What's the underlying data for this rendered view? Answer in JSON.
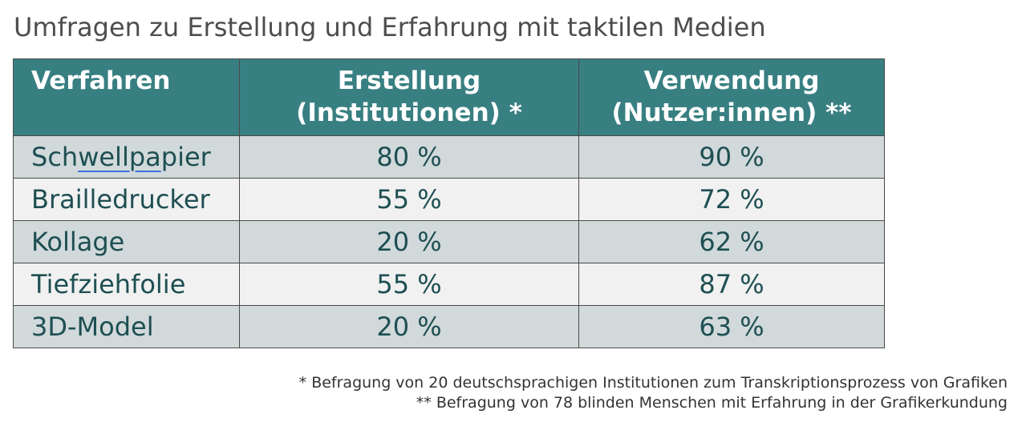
{
  "title": "Umfragen zu Erstellung und Erfahrung mit taktilen Medien",
  "table": {
    "headers": [
      [
        "Verfahren"
      ],
      [
        "Erstellung",
        "(Institutionen) *"
      ],
      [
        "Verwendung",
        "(Nutzer:innen) **"
      ]
    ],
    "rows": [
      {
        "method_pre": "Sch",
        "method_marked": "wellpa",
        "method_post": "pier",
        "creation": "80 %",
        "usage": "90 %"
      },
      {
        "method": "Brailledrucker",
        "creation": "55 %",
        "usage": "72 %"
      },
      {
        "method": "Kollage",
        "creation": "20 %",
        "usage": "62 %"
      },
      {
        "method": "Tiefziehfolie",
        "creation": "55 %",
        "usage": "87 %"
      },
      {
        "method": "3D-Model",
        "creation": "20 %",
        "usage": "63 %"
      }
    ]
  },
  "footnotes": [
    "* Befragung von 20 deutschsprachigen Institutionen zum Transkriptionsprozess von Grafiken",
    "** Befragung von 78 blinden Menschen mit Erfahrung in der Grafikerkundung"
  ],
  "colors": {
    "header_background": "#387f82",
    "row_odd": "#d1d9db",
    "row_even": "#f1f1f1",
    "body_text": "#1e4f52",
    "spellcheck_underline": "#3f6fd8"
  }
}
